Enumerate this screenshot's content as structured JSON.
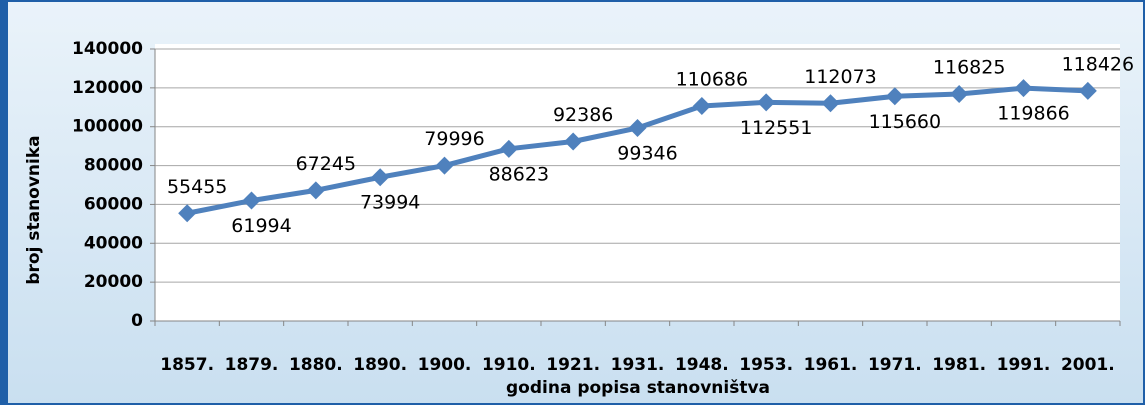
{
  "chart_data": {
    "type": "line",
    "xlabel": "godina popisa  stanovništva",
    "ylabel": "broj stanovnika",
    "categories": [
      "1857.",
      "1879.",
      "1880.",
      "1890.",
      "1900.",
      "1910.",
      "1921.",
      "1931.",
      "1948.",
      "1953.",
      "1961.",
      "1971.",
      "1981.",
      "1991.",
      "2001."
    ],
    "series": [
      {
        "color": "#4f81bd",
        "values": [
          55455,
          61994,
          67245,
          73994,
          79996,
          88623,
          92386,
          99346,
          110686,
          112551,
          112073,
          115660,
          116825,
          119866,
          118426
        ]
      }
    ],
    "ylim": [
      0,
      140000
    ],
    "yticks": [
      0,
      20000,
      40000,
      60000,
      80000,
      100000,
      120000,
      140000
    ],
    "grid": true
  }
}
